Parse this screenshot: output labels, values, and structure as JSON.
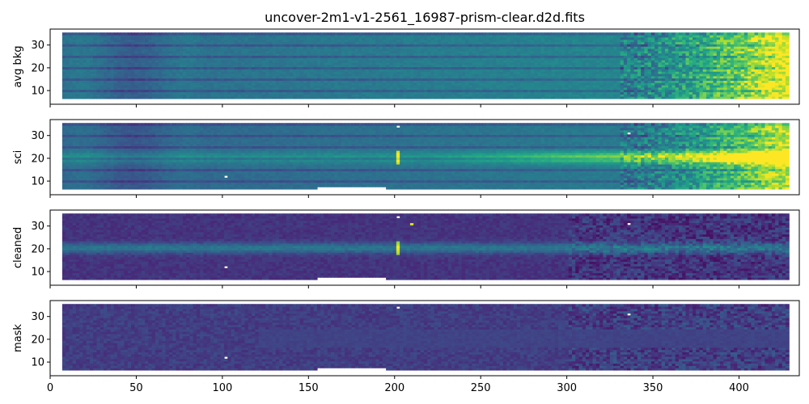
{
  "chart_data": {
    "type": "heatmap",
    "title": "uncover-2m1-v1-2561_16987-prism-clear.d2d.fits",
    "colormap": "viridis",
    "xlim": [
      0,
      435
    ],
    "ylim": [
      4,
      37
    ],
    "x_ticks": [
      0,
      50,
      100,
      150,
      200,
      250,
      300,
      350,
      400
    ],
    "y_ticks": [
      10,
      20,
      30
    ],
    "panels": [
      {
        "key": "avg_bkg",
        "ylabel": "avg bkg"
      },
      {
        "key": "sci",
        "ylabel": "sci"
      },
      {
        "key": "cleaned",
        "ylabel": "cleaned"
      },
      {
        "key": "mask",
        "ylabel": "mask"
      }
    ],
    "data_extent": {
      "x": [
        7,
        428
      ],
      "y": [
        7,
        35
      ]
    },
    "trace": {
      "center_y": 20.5,
      "bright_features_x": [
        201,
        209
      ]
    },
    "masked_pixels": [
      {
        "x": 101,
        "y": 12
      },
      {
        "x": 334,
        "y": 31
      },
      {
        "x": 200,
        "y": 34
      }
    ],
    "colors": {
      "spine": "#000000",
      "masked": "#ffffff"
    }
  }
}
